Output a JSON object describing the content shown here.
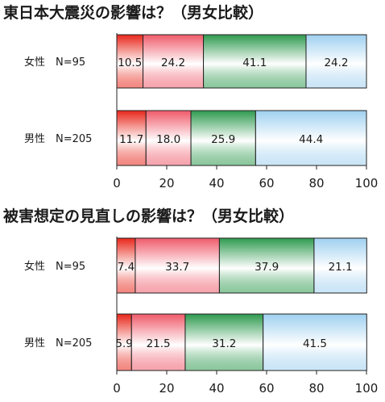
{
  "chart_data": [
    {
      "type": "bar",
      "orientation": "horizontal",
      "stacked": true,
      "title": "東日本大震災の影響は？（男女比較）",
      "categories": [
        "女性　N=95",
        "男性　N=205"
      ],
      "series": [
        {
          "values": [
            10.5,
            11.7
          ],
          "color": "#e8261a"
        },
        {
          "values": [
            24.2,
            18.0
          ],
          "color": "#ef5a6a"
        },
        {
          "values": [
            41.1,
            25.9
          ],
          "color": "#2e9a4e"
        },
        {
          "values": [
            24.2,
            44.4
          ],
          "color": "#9fd0f0"
        }
      ],
      "value_labels": [
        [
          "10.5",
          "24.2",
          "41.1",
          "24.2"
        ],
        [
          "11.7",
          "18.0",
          "25.9",
          "44.4"
        ]
      ],
      "xlim": [
        0,
        100
      ],
      "xticks": [
        "0",
        "20",
        "40",
        "60",
        "80",
        "100"
      ],
      "grid": false,
      "legend": "none"
    },
    {
      "type": "bar",
      "orientation": "horizontal",
      "stacked": true,
      "title": "被害想定の見直しの影響は？（男女比較）",
      "categories": [
        "女性　N=95",
        "男性　N=205"
      ],
      "series": [
        {
          "values": [
            7.4,
            5.9
          ],
          "color": "#e8261a"
        },
        {
          "values": [
            33.7,
            21.5
          ],
          "color": "#ef5a6a"
        },
        {
          "values": [
            37.9,
            31.2
          ],
          "color": "#2e9a4e"
        },
        {
          "values": [
            21.1,
            41.5
          ],
          "color": "#9fd0f0"
        }
      ],
      "value_labels": [
        [
          "7.4",
          "33.7",
          "37.9",
          "21.1"
        ],
        [
          "5.9",
          "21.5",
          "31.2",
          "41.5"
        ]
      ],
      "xlim": [
        0,
        100
      ],
      "xticks": [
        "0",
        "20",
        "40",
        "60",
        "80",
        "100"
      ],
      "grid": false,
      "legend": "none"
    }
  ]
}
